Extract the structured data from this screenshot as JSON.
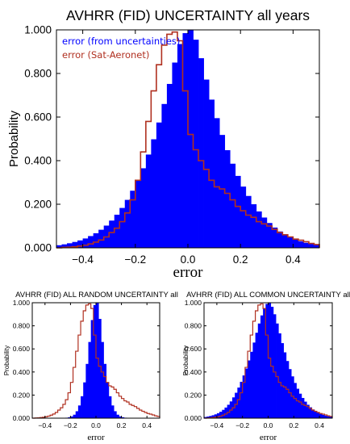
{
  "chart_data": [
    {
      "type": "bar",
      "title": "AVHRR (FID) UNCERTAINTY all years",
      "xlabel": "error",
      "ylabel": "Probability",
      "xlim": [
        -0.5,
        0.5
      ],
      "ylim": [
        0,
        1.0
      ],
      "xticks": [
        "-0.4",
        "-0.2",
        "0.0",
        "0.2",
        "0.4"
      ],
      "yticks": [
        "0.000",
        "0.200",
        "0.400",
        "0.600",
        "0.800",
        "1.000"
      ],
      "legend": "top-left",
      "series": [
        {
          "name": "error (from uncertainties)",
          "color": "#0000ff",
          "style": "filled histogram",
          "x": [
            -0.49,
            -0.47,
            -0.45,
            -0.43,
            -0.41,
            -0.39,
            -0.37,
            -0.35,
            -0.33,
            -0.31,
            -0.29,
            -0.27,
            -0.25,
            -0.23,
            -0.21,
            -0.19,
            -0.17,
            -0.15,
            -0.13,
            -0.11,
            -0.09,
            -0.07,
            -0.05,
            -0.03,
            -0.01,
            0.01,
            0.03,
            0.05,
            0.07,
            0.09,
            0.11,
            0.13,
            0.15,
            0.17,
            0.19,
            0.21,
            0.23,
            0.25,
            0.27,
            0.29,
            0.31,
            0.33,
            0.35,
            0.37,
            0.39,
            0.41,
            0.43,
            0.45,
            0.47,
            0.49
          ],
          "values": [
            0.012,
            0.016,
            0.021,
            0.027,
            0.034,
            0.043,
            0.054,
            0.067,
            0.083,
            0.102,
            0.125,
            0.152,
            0.183,
            0.22,
            0.262,
            0.31,
            0.365,
            0.428,
            0.498,
            0.575,
            0.66,
            0.752,
            0.85,
            0.935,
            0.985,
            1.0,
            0.955,
            0.87,
            0.772,
            0.68,
            0.595,
            0.518,
            0.448,
            0.386,
            0.33,
            0.281,
            0.238,
            0.2,
            0.167,
            0.139,
            0.114,
            0.093,
            0.075,
            0.06,
            0.048,
            0.038,
            0.03,
            0.023,
            0.018,
            0.014
          ]
        },
        {
          "name": "error (Sat-Aeronet)",
          "color": "#b03020",
          "style": "step outline",
          "x": [
            -0.49,
            -0.47,
            -0.45,
            -0.43,
            -0.41,
            -0.39,
            -0.37,
            -0.35,
            -0.33,
            -0.31,
            -0.29,
            -0.27,
            -0.25,
            -0.23,
            -0.21,
            -0.19,
            -0.17,
            -0.15,
            -0.13,
            -0.11,
            -0.09,
            -0.07,
            -0.05,
            -0.03,
            -0.01,
            0.01,
            0.03,
            0.05,
            0.07,
            0.09,
            0.11,
            0.13,
            0.15,
            0.17,
            0.19,
            0.21,
            0.23,
            0.25,
            0.27,
            0.29,
            0.31,
            0.33,
            0.35,
            0.37,
            0.39,
            0.41,
            0.43,
            0.45,
            0.47,
            0.49
          ],
          "values": [
            0.0,
            0.002,
            0.003,
            0.005,
            0.008,
            0.012,
            0.018,
            0.026,
            0.036,
            0.05,
            0.07,
            0.09,
            0.12,
            0.16,
            0.22,
            0.31,
            0.44,
            0.58,
            0.72,
            0.84,
            0.93,
            0.98,
            0.99,
            0.95,
            0.72,
            0.52,
            0.45,
            0.4,
            0.36,
            0.31,
            0.28,
            0.27,
            0.25,
            0.22,
            0.19,
            0.17,
            0.15,
            0.14,
            0.12,
            0.11,
            0.1,
            0.085,
            0.07,
            0.06,
            0.05,
            0.04,
            0.035,
            0.028,
            0.02,
            0.015
          ]
        }
      ]
    },
    {
      "type": "bar",
      "title": "AVHRR (FID) ALL RANDOM UNCERTAINTY all",
      "xlabel": "error",
      "ylabel": "Probability",
      "xlim": [
        -0.5,
        0.5
      ],
      "ylim": [
        0,
        1.0
      ],
      "xticks": [
        "-0.4",
        "-0.2",
        "0.0",
        "0.2",
        "0.4"
      ],
      "yticks": [
        "0.000",
        "0.200",
        "0.400",
        "0.600",
        "0.800",
        "1.000"
      ],
      "series": [
        {
          "color": "#0000ff",
          "style": "filled histogram",
          "x": [
            -0.49,
            -0.47,
            -0.45,
            -0.43,
            -0.41,
            -0.39,
            -0.37,
            -0.35,
            -0.33,
            -0.31,
            -0.29,
            -0.27,
            -0.25,
            -0.23,
            -0.21,
            -0.19,
            -0.17,
            -0.15,
            -0.13,
            -0.11,
            -0.09,
            -0.07,
            -0.05,
            -0.03,
            -0.01,
            0.01,
            0.03,
            0.05,
            0.07,
            0.09,
            0.11,
            0.13,
            0.15,
            0.17,
            0.19,
            0.21,
            0.23,
            0.25,
            0.27,
            0.29,
            0.31,
            0.33,
            0.35,
            0.37,
            0.39,
            0.41,
            0.43,
            0.45,
            0.47,
            0.49
          ],
          "values": [
            0,
            0,
            0,
            0,
            0,
            0,
            0,
            0,
            0,
            0,
            0,
            0,
            0.002,
            0.004,
            0.008,
            0.015,
            0.03,
            0.06,
            0.11,
            0.19,
            0.31,
            0.47,
            0.66,
            0.85,
            0.98,
            1.0,
            0.86,
            0.66,
            0.47,
            0.31,
            0.19,
            0.11,
            0.06,
            0.03,
            0.015,
            0.008,
            0.004,
            0.002,
            0,
            0,
            0,
            0,
            0,
            0,
            0,
            0,
            0,
            0,
            0,
            0
          ]
        },
        {
          "color": "#b03020",
          "style": "step outline",
          "x": [
            -0.49,
            -0.47,
            -0.45,
            -0.43,
            -0.41,
            -0.39,
            -0.37,
            -0.35,
            -0.33,
            -0.31,
            -0.29,
            -0.27,
            -0.25,
            -0.23,
            -0.21,
            -0.19,
            -0.17,
            -0.15,
            -0.13,
            -0.11,
            -0.09,
            -0.07,
            -0.05,
            -0.03,
            -0.01,
            0.01,
            0.03,
            0.05,
            0.07,
            0.09,
            0.11,
            0.13,
            0.15,
            0.17,
            0.19,
            0.21,
            0.23,
            0.25,
            0.27,
            0.29,
            0.31,
            0.33,
            0.35,
            0.37,
            0.39,
            0.41,
            0.43,
            0.45,
            0.47,
            0.49
          ],
          "values": [
            0.0,
            0.002,
            0.003,
            0.005,
            0.008,
            0.012,
            0.018,
            0.026,
            0.036,
            0.05,
            0.07,
            0.09,
            0.12,
            0.16,
            0.22,
            0.31,
            0.44,
            0.58,
            0.72,
            0.84,
            0.93,
            0.98,
            0.99,
            0.95,
            0.72,
            0.52,
            0.45,
            0.4,
            0.36,
            0.31,
            0.28,
            0.27,
            0.25,
            0.22,
            0.19,
            0.17,
            0.15,
            0.14,
            0.12,
            0.11,
            0.1,
            0.085,
            0.07,
            0.06,
            0.05,
            0.04,
            0.035,
            0.028,
            0.02,
            0.015
          ]
        }
      ]
    },
    {
      "type": "bar",
      "title": "AVHRR (FID) ALL COMMON UNCERTAINTY all",
      "xlabel": "error",
      "ylabel": "Probability",
      "xlim": [
        -0.5,
        0.5
      ],
      "ylim": [
        0,
        1.0
      ],
      "xticks": [
        "-0.4",
        "-0.2",
        "0.0",
        "0.2",
        "0.4"
      ],
      "yticks": [
        "0.000",
        "0.200",
        "0.400",
        "0.600",
        "0.800",
        "1.000"
      ],
      "series": [
        {
          "color": "#0000ff",
          "style": "filled histogram",
          "x": [
            -0.49,
            -0.47,
            -0.45,
            -0.43,
            -0.41,
            -0.39,
            -0.37,
            -0.35,
            -0.33,
            -0.31,
            -0.29,
            -0.27,
            -0.25,
            -0.23,
            -0.21,
            -0.19,
            -0.17,
            -0.15,
            -0.13,
            -0.11,
            -0.09,
            -0.07,
            -0.05,
            -0.03,
            -0.01,
            0.01,
            0.03,
            0.05,
            0.07,
            0.09,
            0.11,
            0.13,
            0.15,
            0.17,
            0.19,
            0.21,
            0.23,
            0.25,
            0.27,
            0.29,
            0.31,
            0.33,
            0.35,
            0.37,
            0.39,
            0.41,
            0.43,
            0.45,
            0.47,
            0.49
          ],
          "values": [
            0.01,
            0.014,
            0.019,
            0.025,
            0.033,
            0.043,
            0.056,
            0.072,
            0.092,
            0.116,
            0.145,
            0.18,
            0.22,
            0.265,
            0.315,
            0.37,
            0.43,
            0.5,
            0.575,
            0.655,
            0.74,
            0.82,
            0.89,
            0.95,
            0.99,
            1.0,
            0.965,
            0.9,
            0.82,
            0.735,
            0.65,
            0.57,
            0.495,
            0.425,
            0.362,
            0.305,
            0.255,
            0.212,
            0.175,
            0.143,
            0.116,
            0.094,
            0.075,
            0.06,
            0.047,
            0.037,
            0.029,
            0.022,
            0.017,
            0.013
          ]
        },
        {
          "color": "#b03020",
          "style": "step outline",
          "x": [
            -0.49,
            -0.47,
            -0.45,
            -0.43,
            -0.41,
            -0.39,
            -0.37,
            -0.35,
            -0.33,
            -0.31,
            -0.29,
            -0.27,
            -0.25,
            -0.23,
            -0.21,
            -0.19,
            -0.17,
            -0.15,
            -0.13,
            -0.11,
            -0.09,
            -0.07,
            -0.05,
            -0.03,
            -0.01,
            0.01,
            0.03,
            0.05,
            0.07,
            0.09,
            0.11,
            0.13,
            0.15,
            0.17,
            0.19,
            0.21,
            0.23,
            0.25,
            0.27,
            0.29,
            0.31,
            0.33,
            0.35,
            0.37,
            0.39,
            0.41,
            0.43,
            0.45,
            0.47,
            0.49
          ],
          "values": [
            0.0,
            0.002,
            0.003,
            0.005,
            0.008,
            0.012,
            0.018,
            0.026,
            0.036,
            0.05,
            0.07,
            0.09,
            0.12,
            0.16,
            0.22,
            0.31,
            0.44,
            0.58,
            0.72,
            0.84,
            0.93,
            0.98,
            0.99,
            0.95,
            0.72,
            0.52,
            0.45,
            0.4,
            0.36,
            0.31,
            0.28,
            0.27,
            0.25,
            0.22,
            0.19,
            0.17,
            0.15,
            0.14,
            0.12,
            0.11,
            0.1,
            0.085,
            0.07,
            0.06,
            0.05,
            0.04,
            0.035,
            0.028,
            0.02,
            0.015
          ]
        }
      ]
    }
  ]
}
